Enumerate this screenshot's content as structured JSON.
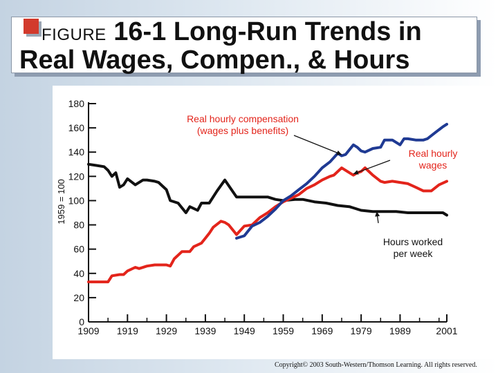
{
  "title": {
    "figure_label": "FIGURE",
    "line1": "16-1 Long-Run Trends in",
    "line2": "Real Wages, Compen., & Hours"
  },
  "copyright": "Copyright© 2003 South-Western/Thomson Learning. All rights reserved.",
  "colors": {
    "compensation": "#1f3a93",
    "wages": "#e3241b",
    "hours": "#111111",
    "anno_compensation": "#e3241b",
    "anno_wages": "#e3241b",
    "anno_hours": "#111111",
    "title_bullet": "#d23a2c"
  },
  "chart_data": {
    "type": "line",
    "title": "",
    "xlabel": "",
    "ylabel": "1959 = 100",
    "xlim": [
      1909,
      2001
    ],
    "ylim": [
      0,
      180
    ],
    "grid": false,
    "legend": "none",
    "x_ticks": [
      1909,
      1919,
      1929,
      1939,
      1949,
      1959,
      1969,
      1979,
      1989,
      2001
    ],
    "y_ticks": [
      0,
      20,
      40,
      60,
      80,
      100,
      120,
      140,
      160,
      180
    ],
    "series": [
      {
        "key": "compensation",
        "x": [
          1947,
          1949,
          1951,
          1953,
          1955,
          1957,
          1959,
          1961,
          1963,
          1965,
          1967,
          1969,
          1971,
          1973,
          1974,
          1975,
          1977,
          1978,
          1979,
          1980,
          1982,
          1984,
          1985,
          1987,
          1989,
          1990,
          1991,
          1993,
          1995,
          1996,
          1998,
          2000,
          2001
        ],
        "y": [
          69,
          71,
          79,
          82,
          87,
          93,
          100,
          104,
          109,
          114,
          120,
          127,
          132,
          139,
          137,
          138,
          146,
          144,
          141,
          140,
          143,
          144,
          150,
          150,
          146,
          151,
          151,
          150,
          150,
          151,
          156,
          161,
          163
        ]
      },
      {
        "key": "wages",
        "x": [
          1909,
          1910,
          1914,
          1915,
          1917,
          1918,
          1919,
          1921,
          1922,
          1924,
          1926,
          1927,
          1929,
          1930,
          1931,
          1933,
          1935,
          1936,
          1938,
          1939,
          1940,
          1941,
          1943,
          1944,
          1945,
          1947,
          1949,
          1951,
          1953,
          1955,
          1957,
          1959,
          1961,
          1963,
          1965,
          1967,
          1969,
          1971,
          1972,
          1973,
          1974,
          1975,
          1977,
          1978,
          1979,
          1980,
          1982,
          1984,
          1985,
          1987,
          1989,
          1991,
          1993,
          1995,
          1997,
          1999,
          2001
        ],
        "y": [
          33,
          33,
          33,
          38,
          39,
          39,
          42,
          45,
          44,
          46,
          47,
          47,
          47,
          46,
          52,
          58,
          58,
          62,
          65,
          69,
          73,
          78,
          83,
          82,
          80,
          72,
          79,
          80,
          86,
          90,
          95,
          99,
          102,
          105,
          110,
          113,
          117,
          120,
          121,
          124,
          127,
          125,
          121,
          123,
          124,
          127,
          121,
          116,
          115,
          116,
          115,
          114,
          111,
          108,
          108,
          113,
          116
        ]
      },
      {
        "key": "hours",
        "x": [
          1909,
          1911,
          1913,
          1914,
          1915,
          1916,
          1917,
          1918,
          1919,
          1921,
          1923,
          1924,
          1926,
          1927,
          1929,
          1930,
          1932,
          1934,
          1935,
          1937,
          1938,
          1940,
          1942,
          1944,
          1947,
          1949,
          1952,
          1955,
          1957,
          1959,
          1962,
          1964,
          1967,
          1970,
          1973,
          1976,
          1979,
          1982,
          1985,
          1988,
          1991,
          1994,
          1997,
          2000,
          2001
        ],
        "y": [
          130,
          129,
          128,
          125,
          120,
          123,
          111,
          113,
          118,
          113,
          117,
          117,
          116,
          115,
          109,
          100,
          98,
          90,
          95,
          92,
          98,
          98,
          108,
          117,
          103,
          103,
          103,
          103,
          101,
          100,
          101,
          101,
          99,
          98,
          96,
          95,
          92,
          91,
          91,
          91,
          90,
          90,
          90,
          90,
          88
        ]
      }
    ],
    "annotations": [
      {
        "key": "compensation",
        "lines": [
          "Real hourly compensation",
          "(wages plus benefits)"
        ],
        "target": [
          1974,
          138
        ]
      },
      {
        "key": "wages",
        "lines": [
          "Real hourly",
          "wages"
        ],
        "target": [
          1977,
          122
        ]
      },
      {
        "key": "hours",
        "lines": [
          "Hours worked",
          "per week"
        ],
        "target": [
          1983,
          91
        ]
      }
    ]
  }
}
